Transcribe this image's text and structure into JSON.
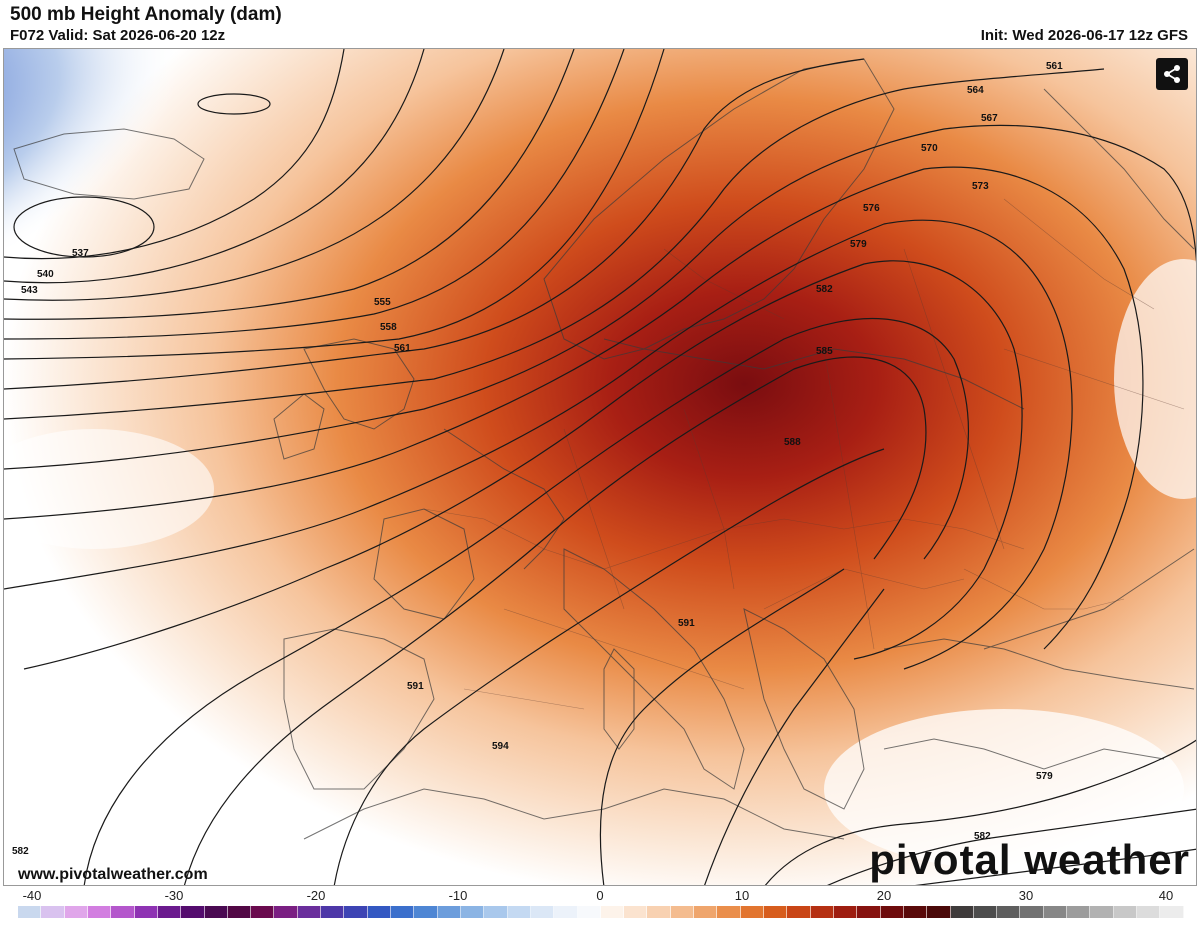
{
  "header": {
    "title": "500 mb Height Anomaly (dam)",
    "valid": "F072 Valid: Sat 2026-06-20 12z",
    "init": "Init: Wed 2026-06-17 12z GFS"
  },
  "footer": {
    "website": "www.pivotalweather.com",
    "brand": "pivotal weather"
  },
  "contour_labels": [
    {
      "id": "c537",
      "text": "537"
    },
    {
      "id": "c540",
      "text": "540"
    },
    {
      "id": "c543",
      "text": "543"
    },
    {
      "id": "c555",
      "text": "555"
    },
    {
      "id": "c558",
      "text": "558"
    },
    {
      "id": "c561a",
      "text": "561"
    },
    {
      "id": "c561b",
      "text": "561"
    },
    {
      "id": "c564",
      "text": "564"
    },
    {
      "id": "c567",
      "text": "567"
    },
    {
      "id": "c570",
      "text": "570"
    },
    {
      "id": "c573",
      "text": "573"
    },
    {
      "id": "c576",
      "text": "576"
    },
    {
      "id": "c579a",
      "text": "579"
    },
    {
      "id": "c579b",
      "text": "579"
    },
    {
      "id": "c582a",
      "text": "582"
    },
    {
      "id": "c582b",
      "text": "582"
    },
    {
      "id": "c582c",
      "text": "582"
    },
    {
      "id": "c585",
      "text": "585"
    },
    {
      "id": "c588",
      "text": "588"
    },
    {
      "id": "c591a",
      "text": "591"
    },
    {
      "id": "c591b",
      "text": "591"
    },
    {
      "id": "c594",
      "text": "594"
    }
  ],
  "colorbar": {
    "ticks": [
      "-40",
      "-30",
      "-20",
      "-10",
      "0",
      "10",
      "20",
      "30",
      "40"
    ],
    "colors": [
      "#c9d8ee",
      "#d9c2ef",
      "#e0a6ea",
      "#d27ee0",
      "#b457cc",
      "#8e33b3",
      "#6b1a8e",
      "#540c6e",
      "#4a0a52",
      "#520845",
      "#6a0a4e",
      "#7a1f82",
      "#6a2e9c",
      "#4d37a8",
      "#3d44b4",
      "#3358c2",
      "#3b6fcc",
      "#4e86d4",
      "#6c9ddc",
      "#8bb4e4",
      "#a9c8ec",
      "#c4d9f2",
      "#dbe7f6",
      "#ecf2fa",
      "#f7f9fc",
      "#fdf3ea",
      "#fbe3cf",
      "#f8d1b1",
      "#f4bc8f",
      "#efa56c",
      "#ea8e4b",
      "#e2752f",
      "#d75d1d",
      "#c94516",
      "#b53012",
      "#9e1d10",
      "#86120f",
      "#6e0b0c",
      "#5a0a0a",
      "#4a0909",
      "#3f3b3b",
      "#4d4d4d",
      "#5e5e5e",
      "#727272",
      "#878787",
      "#9c9c9c",
      "#b2b2b2",
      "#c8c8c8",
      "#dcdcdc",
      "#ececec"
    ]
  }
}
